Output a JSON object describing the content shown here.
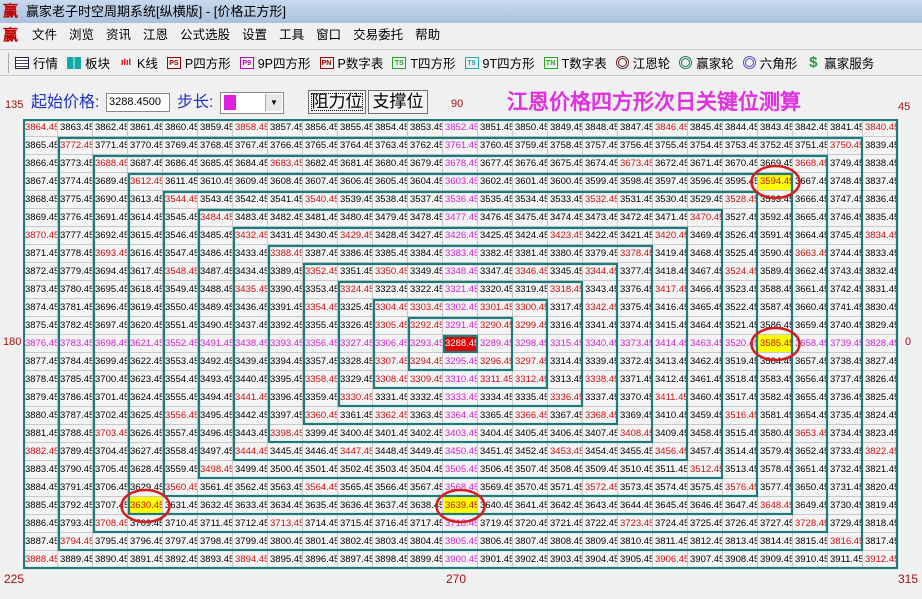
{
  "window": {
    "title": "赢家老子时空周期系统[纵横版] - [价格正方形]",
    "logo": "赢"
  },
  "menu": [
    "文件",
    "浏览",
    "资讯",
    "江恩",
    "公式选股",
    "设置",
    "工具",
    "窗口",
    "交易委托",
    "帮助"
  ],
  "toolbar": [
    {
      "label": "行情",
      "icon": "table-icon",
      "badge": ""
    },
    {
      "label": "板块",
      "icon": "blocks-icon",
      "badge": ""
    },
    {
      "label": "K线",
      "icon": "candlestick-icon",
      "badge": ""
    },
    {
      "label": "P四方形",
      "icon": "ps-icon",
      "badge": "PS"
    },
    {
      "label": "9P四方形",
      "icon": "p9-icon",
      "badge": "P9"
    },
    {
      "label": "P数字表",
      "icon": "pn-icon",
      "badge": "PN"
    },
    {
      "label": "T四方形",
      "icon": "ts-icon",
      "badge": "TS"
    },
    {
      "label": "9T四方形",
      "icon": "t9-icon",
      "badge": "T9"
    },
    {
      "label": "T数字表",
      "icon": "tn-icon",
      "badge": "TN"
    },
    {
      "label": "江恩轮",
      "icon": "gann-wheel-icon",
      "badge": ""
    },
    {
      "label": "赢家轮",
      "icon": "winner-wheel-icon",
      "badge": ""
    },
    {
      "label": "六角形",
      "icon": "hexagon-icon",
      "badge": ""
    },
    {
      "label": "赢家服务",
      "icon": "dollar-icon",
      "badge": "$"
    }
  ],
  "controls": {
    "start_price_label": "起始价格:",
    "start_price_value": "3288.4500",
    "step_label": "步长:",
    "step_color": "#e020e0",
    "resistance_button": "阻力位",
    "support_button": "支撑位"
  },
  "heading": "江恩价格四方形次日关键位测算",
  "angles": {
    "top_left": "135",
    "top_center": "90",
    "top_right": "45",
    "left": "180",
    "right": "0",
    "bottom_left": "225",
    "bottom_center": "270",
    "bottom_right": "315"
  },
  "colors": {
    "angle_red": "#c81010",
    "angle_magenta": "#d020d0",
    "highlight": "#ffff00",
    "center": "#e00000",
    "spiral_line": "#1f7b7b",
    "circle": "#d02020"
  },
  "grid": {
    "center_value": 3288.45,
    "highlighted": [
      3594.45,
      3585.45,
      3630.45,
      3639.45
    ],
    "rows": [
      [
        3864.45,
        3863.45,
        3862.45,
        3861.45,
        3860.45,
        3859.45,
        3858.45,
        3857.45,
        3856.45,
        3855.45,
        3854.45,
        3853.45,
        3852.45,
        3851.45,
        3850.45,
        3849.45,
        3848.45,
        3847.45,
        3846.45,
        3845.45,
        3844.45,
        3843.45,
        3842.45,
        3841.45,
        3840.45
      ],
      [
        3865.45,
        3772.45,
        3771.45,
        3770.45,
        3769.45,
        3768.45,
        3767.45,
        3766.45,
        3765.45,
        3764.45,
        3763.45,
        3762.45,
        3761.45,
        3760.45,
        3759.45,
        3758.45,
        3757.45,
        3756.45,
        3755.45,
        3754.45,
        3753.45,
        3752.45,
        3751.45,
        3750.45,
        3839.45
      ],
      [
        3866.45,
        3773.45,
        3688.45,
        3687.45,
        3686.45,
        3685.45,
        3684.45,
        3683.45,
        3682.45,
        3681.45,
        3680.45,
        3679.45,
        3678.45,
        3677.45,
        3676.45,
        3675.45,
        3674.45,
        3673.45,
        3672.45,
        3671.45,
        3670.45,
        3669.45,
        3668.45,
        3749.45,
        3838.45
      ],
      [
        3867.45,
        3774.45,
        3689.45,
        3612.45,
        3611.45,
        3610.45,
        3609.45,
        3608.45,
        3607.45,
        3606.45,
        3605.45,
        3604.45,
        3603.45,
        3602.45,
        3601.45,
        3600.45,
        3599.45,
        3598.45,
        3597.45,
        3596.45,
        3595.45,
        3594.45,
        3667.45,
        3748.45,
        3837.45
      ],
      [
        3868.45,
        3775.45,
        3690.45,
        3613.45,
        3544.45,
        3543.45,
        3542.45,
        3541.45,
        3540.45,
        3539.45,
        3538.45,
        3537.45,
        3536.45,
        3535.45,
        3534.45,
        3533.45,
        3532.45,
        3531.45,
        3530.45,
        3529.45,
        3528.45,
        3593.45,
        3666.45,
        3747.45,
        3836.45
      ],
      [
        3869.45,
        3776.45,
        3691.45,
        3614.45,
        3545.45,
        3484.45,
        3483.45,
        3482.45,
        3481.45,
        3480.45,
        3479.45,
        3478.45,
        3477.45,
        3476.45,
        3475.45,
        3474.45,
        3473.45,
        3472.45,
        3471.45,
        3470.45,
        3527.45,
        3592.45,
        3665.45,
        3746.45,
        3835.45
      ],
      [
        3870.45,
        3777.45,
        3692.45,
        3615.45,
        3546.45,
        3485.45,
        3432.45,
        3431.45,
        3430.45,
        3429.45,
        3428.45,
        3427.45,
        3426.45,
        3425.45,
        3424.45,
        3423.45,
        3422.45,
        3421.45,
        3420.45,
        3469.45,
        3526.45,
        3591.45,
        3664.45,
        3745.45,
        3834.45
      ],
      [
        3871.45,
        3778.45,
        3693.45,
        3616.45,
        3547.45,
        3486.45,
        3433.45,
        3388.45,
        3387.45,
        3386.45,
        3385.45,
        3384.45,
        3383.45,
        3382.45,
        3381.45,
        3380.45,
        3379.45,
        3378.45,
        3419.45,
        3468.45,
        3525.45,
        3590.45,
        3663.45,
        3744.45,
        3833.45
      ],
      [
        3872.45,
        3779.45,
        3694.45,
        3617.45,
        3548.45,
        3487.45,
        3434.45,
        3389.45,
        3352.45,
        3351.45,
        3350.45,
        3349.45,
        3348.45,
        3347.45,
        3346.45,
        3345.45,
        3344.45,
        3377.45,
        3418.45,
        3467.45,
        3524.45,
        3589.45,
        3662.45,
        3743.45,
        3832.45
      ],
      [
        3873.45,
        3780.45,
        3695.45,
        3618.45,
        3549.45,
        3488.45,
        3435.45,
        3390.45,
        3353.45,
        3324.45,
        3323.45,
        3322.45,
        3321.45,
        3320.45,
        3319.45,
        3318.45,
        3343.45,
        3376.45,
        3417.45,
        3466.45,
        3523.45,
        3588.45,
        3661.45,
        3742.45,
        3831.45
      ],
      [
        3874.45,
        3781.45,
        3696.45,
        3619.45,
        3550.45,
        3489.45,
        3436.45,
        3391.45,
        3354.45,
        3325.45,
        3304.45,
        3303.45,
        3302.45,
        3301.45,
        3300.45,
        3317.45,
        3342.45,
        3375.45,
        3416.45,
        3465.45,
        3522.45,
        3587.45,
        3660.45,
        3741.45,
        3830.45
      ],
      [
        3875.45,
        3782.45,
        3697.45,
        3620.45,
        3551.45,
        3490.45,
        3437.45,
        3392.45,
        3355.45,
        3326.45,
        3305.45,
        3292.45,
        3291.45,
        3290.45,
        3299.45,
        3316.45,
        3341.45,
        3374.45,
        3415.45,
        3464.45,
        3521.45,
        3586.45,
        3659.45,
        3740.45,
        3829.45
      ],
      [
        3876.45,
        3783.45,
        3698.45,
        3621.45,
        3552.45,
        3491.45,
        3438.45,
        3393.45,
        3356.45,
        3327.45,
        3306.45,
        3293.45,
        3288.45,
        3289.45,
        3298.45,
        3315.45,
        3340.45,
        3373.45,
        3414.45,
        3463.45,
        3520.45,
        3585.45,
        3658.45,
        3739.45,
        3828.45
      ],
      [
        3877.45,
        3784.45,
        3699.45,
        3622.45,
        3553.45,
        3492.45,
        3439.45,
        3394.45,
        3357.45,
        3328.45,
        3307.45,
        3294.45,
        3295.45,
        3296.45,
        3297.45,
        3314.45,
        3339.45,
        3372.45,
        3413.45,
        3462.45,
        3519.45,
        3584.45,
        3657.45,
        3738.45,
        3827.45
      ],
      [
        3878.45,
        3785.45,
        3700.45,
        3623.45,
        3554.45,
        3493.45,
        3440.45,
        3395.45,
        3358.45,
        3329.45,
        3308.45,
        3309.45,
        3310.45,
        3311.45,
        3312.45,
        3313.45,
        3338.45,
        3371.45,
        3412.45,
        3461.45,
        3518.45,
        3583.45,
        3656.45,
        3737.45,
        3826.45
      ],
      [
        3879.45,
        3786.45,
        3701.45,
        3624.45,
        3555.45,
        3494.45,
        3441.45,
        3396.45,
        3359.45,
        3330.45,
        3331.45,
        3332.45,
        3333.45,
        3334.45,
        3335.45,
        3336.45,
        3337.45,
        3370.45,
        3411.45,
        3460.45,
        3517.45,
        3582.45,
        3655.45,
        3736.45,
        3825.45
      ],
      [
        3880.45,
        3787.45,
        3702.45,
        3625.45,
        3556.45,
        3495.45,
        3442.45,
        3397.45,
        3360.45,
        3361.45,
        3362.45,
        3363.45,
        3364.45,
        3365.45,
        3366.45,
        3367.45,
        3368.45,
        3369.45,
        3410.45,
        3459.45,
        3516.45,
        3581.45,
        3654.45,
        3735.45,
        3824.45
      ],
      [
        3881.45,
        3788.45,
        3703.45,
        3626.45,
        3557.45,
        3496.45,
        3443.45,
        3398.45,
        3399.45,
        3400.45,
        3401.45,
        3402.45,
        3403.45,
        3404.45,
        3405.45,
        3406.45,
        3407.45,
        3408.45,
        3409.45,
        3458.45,
        3515.45,
        3580.45,
        3653.45,
        3734.45,
        3823.45
      ],
      [
        3882.45,
        3789.45,
        3704.45,
        3627.45,
        3558.45,
        3497.45,
        3444.45,
        3445.45,
        3446.45,
        3447.45,
        3448.45,
        3449.45,
        3450.45,
        3451.45,
        3452.45,
        3453.45,
        3454.45,
        3455.45,
        3456.45,
        3457.45,
        3514.45,
        3579.45,
        3652.45,
        3733.45,
        3822.45
      ],
      [
        3883.45,
        3790.45,
        3705.45,
        3628.45,
        3559.45,
        3498.45,
        3499.45,
        3500.45,
        3501.45,
        3502.45,
        3503.45,
        3504.45,
        3505.45,
        3506.45,
        3507.45,
        3508.45,
        3509.45,
        3510.45,
        3511.45,
        3512.45,
        3513.45,
        3578.45,
        3651.45,
        3732.45,
        3821.45
      ],
      [
        3884.45,
        3791.45,
        3706.45,
        3629.45,
        3560.45,
        3561.45,
        3562.45,
        3563.45,
        3564.45,
        3565.45,
        3566.45,
        3567.45,
        3568.45,
        3569.45,
        3570.45,
        3571.45,
        3572.45,
        3573.45,
        3574.45,
        3575.45,
        3576.45,
        3577.45,
        3650.45,
        3731.45,
        3820.45
      ],
      [
        3885.45,
        3792.45,
        3707.45,
        3630.45,
        3631.45,
        3632.45,
        3633.45,
        3634.45,
        3635.45,
        3636.45,
        3637.45,
        3638.45,
        3639.45,
        3640.45,
        3641.45,
        3642.45,
        3643.45,
        3644.45,
        3645.45,
        3646.45,
        3647.45,
        3648.45,
        3649.45,
        3730.45,
        3819.45
      ],
      [
        3886.45,
        3793.45,
        3708.45,
        3709.45,
        3710.45,
        3711.45,
        3712.45,
        3713.45,
        3714.45,
        3715.45,
        3716.45,
        3717.45,
        3718.45,
        3719.45,
        3720.45,
        3721.45,
        3722.45,
        3723.45,
        3724.45,
        3725.45,
        3726.45,
        3727.45,
        3728.45,
        3729.45,
        3818.45
      ],
      [
        3887.45,
        3794.45,
        3795.45,
        3796.45,
        3797.45,
        3798.45,
        3799.45,
        3800.45,
        3801.45,
        3802.45,
        3803.45,
        3804.45,
        3805.45,
        3806.45,
        3807.45,
        3808.45,
        3809.45,
        3810.45,
        3811.45,
        3812.45,
        3813.45,
        3814.45,
        3815.45,
        3816.45,
        3817.45
      ],
      [
        3888.45,
        3889.45,
        3890.45,
        3891.45,
        3892.45,
        3893.45,
        3894.45,
        3895.45,
        3896.45,
        3897.45,
        3898.45,
        3899.45,
        3900.45,
        3901.45,
        3902.45,
        3903.45,
        3904.45,
        3905.45,
        3906.45,
        3907.45,
        3908.45,
        3909.45,
        3910.45,
        3911.45,
        3912.45
      ]
    ]
  }
}
